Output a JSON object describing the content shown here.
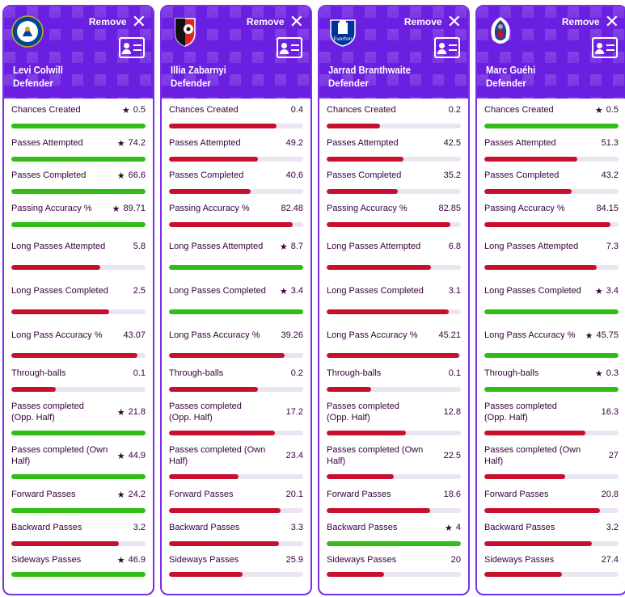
{
  "remove_label": "Remove",
  "colors": {
    "header": "#6b1fe0",
    "win": "#2fbd16",
    "lose": "#c8102e",
    "track": "#ebe5f2"
  },
  "players": [
    {
      "name": "Levi Colwill",
      "position": "Defender",
      "club_icon": "chelsea-crest-icon",
      "stats": [
        {
          "label": "Chances Created",
          "value": "0.5",
          "star": true,
          "pct": 100,
          "color": "green"
        },
        {
          "label": "Passes Attempted",
          "value": "74.2",
          "star": true,
          "pct": 100,
          "color": "green"
        },
        {
          "label": "Passes Completed",
          "value": "66.6",
          "star": true,
          "pct": 100,
          "color": "green"
        },
        {
          "label": "Passing Accuracy %",
          "value": "89.71",
          "star": true,
          "pct": 100,
          "color": "green"
        },
        {
          "label": "Long Passes Attempted",
          "value": "5.8",
          "star": false,
          "pct": 66,
          "color": "red"
        },
        {
          "label": "Long Passes Completed",
          "value": "2.5",
          "star": false,
          "pct": 73,
          "color": "red"
        },
        {
          "label": "Long Pass Accuracy %",
          "value": "43.07",
          "star": false,
          "pct": 94,
          "color": "red"
        },
        {
          "label": "Through-balls",
          "value": "0.1",
          "star": false,
          "pct": 33,
          "color": "red"
        },
        {
          "label": "Passes completed (Opp. Half)",
          "value": "21.8",
          "star": true,
          "pct": 100,
          "color": "green"
        },
        {
          "label": "Passes completed (Own Half)",
          "value": "44.9",
          "star": true,
          "pct": 100,
          "color": "green"
        },
        {
          "label": "Forward Passes",
          "value": "24.2",
          "star": true,
          "pct": 100,
          "color": "green"
        },
        {
          "label": "Backward Passes",
          "value": "3.2",
          "star": false,
          "pct": 80,
          "color": "red"
        },
        {
          "label": "Sideways Passes",
          "value": "46.9",
          "star": true,
          "pct": 100,
          "color": "green"
        }
      ]
    },
    {
      "name": "Illia Zabarnyi",
      "position": "Defender",
      "club_icon": "bournemouth-crest-icon",
      "stats": [
        {
          "label": "Chances Created",
          "value": "0.4",
          "star": false,
          "pct": 80,
          "color": "red"
        },
        {
          "label": "Passes Attempted",
          "value": "49.2",
          "star": false,
          "pct": 66,
          "color": "red"
        },
        {
          "label": "Passes Completed",
          "value": "40.6",
          "star": false,
          "pct": 61,
          "color": "red"
        },
        {
          "label": "Passing Accuracy %",
          "value": "82.48",
          "star": false,
          "pct": 92,
          "color": "red"
        },
        {
          "label": "Long Passes Attempted",
          "value": "8.7",
          "star": true,
          "pct": 100,
          "color": "green"
        },
        {
          "label": "Long Passes Completed",
          "value": "3.4",
          "star": true,
          "pct": 100,
          "color": "green"
        },
        {
          "label": "Long Pass Accuracy %",
          "value": "39.26",
          "star": false,
          "pct": 86,
          "color": "red"
        },
        {
          "label": "Through-balls",
          "value": "0.2",
          "star": false,
          "pct": 66,
          "color": "red"
        },
        {
          "label": "Passes completed (Opp. Half)",
          "value": "17.2",
          "star": false,
          "pct": 79,
          "color": "red"
        },
        {
          "label": "Passes completed (Own Half)",
          "value": "23.4",
          "star": false,
          "pct": 52,
          "color": "red"
        },
        {
          "label": "Forward Passes",
          "value": "20.1",
          "star": false,
          "pct": 83,
          "color": "red"
        },
        {
          "label": "Backward Passes",
          "value": "3.3",
          "star": false,
          "pct": 82,
          "color": "red"
        },
        {
          "label": "Sideways Passes",
          "value": "25.9",
          "star": false,
          "pct": 55,
          "color": "red"
        }
      ]
    },
    {
      "name": "Jarrad Branthwaite",
      "position": "Defender",
      "club_icon": "everton-crest-icon",
      "stats": [
        {
          "label": "Chances Created",
          "value": "0.2",
          "star": false,
          "pct": 40,
          "color": "red"
        },
        {
          "label": "Passes Attempted",
          "value": "42.5",
          "star": false,
          "pct": 57,
          "color": "red"
        },
        {
          "label": "Passes Completed",
          "value": "35.2",
          "star": false,
          "pct": 53,
          "color": "red"
        },
        {
          "label": "Passing Accuracy %",
          "value": "82.85",
          "star": false,
          "pct": 92,
          "color": "red"
        },
        {
          "label": "Long Passes Attempted",
          "value": "6.8",
          "star": false,
          "pct": 78,
          "color": "red"
        },
        {
          "label": "Long Passes Completed",
          "value": "3.1",
          "star": false,
          "pct": 91,
          "color": "red"
        },
        {
          "label": "Long Pass Accuracy %",
          "value": "45.21",
          "star": false,
          "pct": 99,
          "color": "red"
        },
        {
          "label": "Through-balls",
          "value": "0.1",
          "star": false,
          "pct": 33,
          "color": "red"
        },
        {
          "label": "Passes completed (Opp. Half)",
          "value": "12.8",
          "star": false,
          "pct": 59,
          "color": "red"
        },
        {
          "label": "Passes completed (Own Half)",
          "value": "22.5",
          "star": false,
          "pct": 50,
          "color": "red"
        },
        {
          "label": "Forward Passes",
          "value": "18.6",
          "star": false,
          "pct": 77,
          "color": "red"
        },
        {
          "label": "Backward Passes",
          "value": "4",
          "star": true,
          "pct": 100,
          "color": "green"
        },
        {
          "label": "Sideways Passes",
          "value": "20",
          "star": false,
          "pct": 43,
          "color": "red"
        }
      ]
    },
    {
      "name": "Marc Guéhi",
      "position": "Defender",
      "club_icon": "crystal-palace-crest-icon",
      "stats": [
        {
          "label": "Chances Created",
          "value": "0.5",
          "star": true,
          "pct": 100,
          "color": "green"
        },
        {
          "label": "Passes Attempted",
          "value": "51.3",
          "star": false,
          "pct": 69,
          "color": "red"
        },
        {
          "label": "Passes Completed",
          "value": "43.2",
          "star": false,
          "pct": 65,
          "color": "red"
        },
        {
          "label": "Passing Accuracy %",
          "value": "84.15",
          "star": false,
          "pct": 94,
          "color": "red"
        },
        {
          "label": "Long Passes Attempted",
          "value": "7.3",
          "star": false,
          "pct": 84,
          "color": "red"
        },
        {
          "label": "Long Passes Completed",
          "value": "3.4",
          "star": true,
          "pct": 100,
          "color": "green"
        },
        {
          "label": "Long Pass Accuracy %",
          "value": "45.75",
          "star": true,
          "pct": 100,
          "color": "green"
        },
        {
          "label": "Through-balls",
          "value": "0.3",
          "star": true,
          "pct": 100,
          "color": "green"
        },
        {
          "label": "Passes completed (Opp. Half)",
          "value": "16.3",
          "star": false,
          "pct": 75,
          "color": "red"
        },
        {
          "label": "Passes completed (Own Half)",
          "value": "27",
          "star": false,
          "pct": 60,
          "color": "red"
        },
        {
          "label": "Forward Passes",
          "value": "20.8",
          "star": false,
          "pct": 86,
          "color": "red"
        },
        {
          "label": "Backward Passes",
          "value": "3.2",
          "star": false,
          "pct": 80,
          "color": "red"
        },
        {
          "label": "Sideways Passes",
          "value": "27.4",
          "star": false,
          "pct": 58,
          "color": "red"
        }
      ]
    }
  ]
}
